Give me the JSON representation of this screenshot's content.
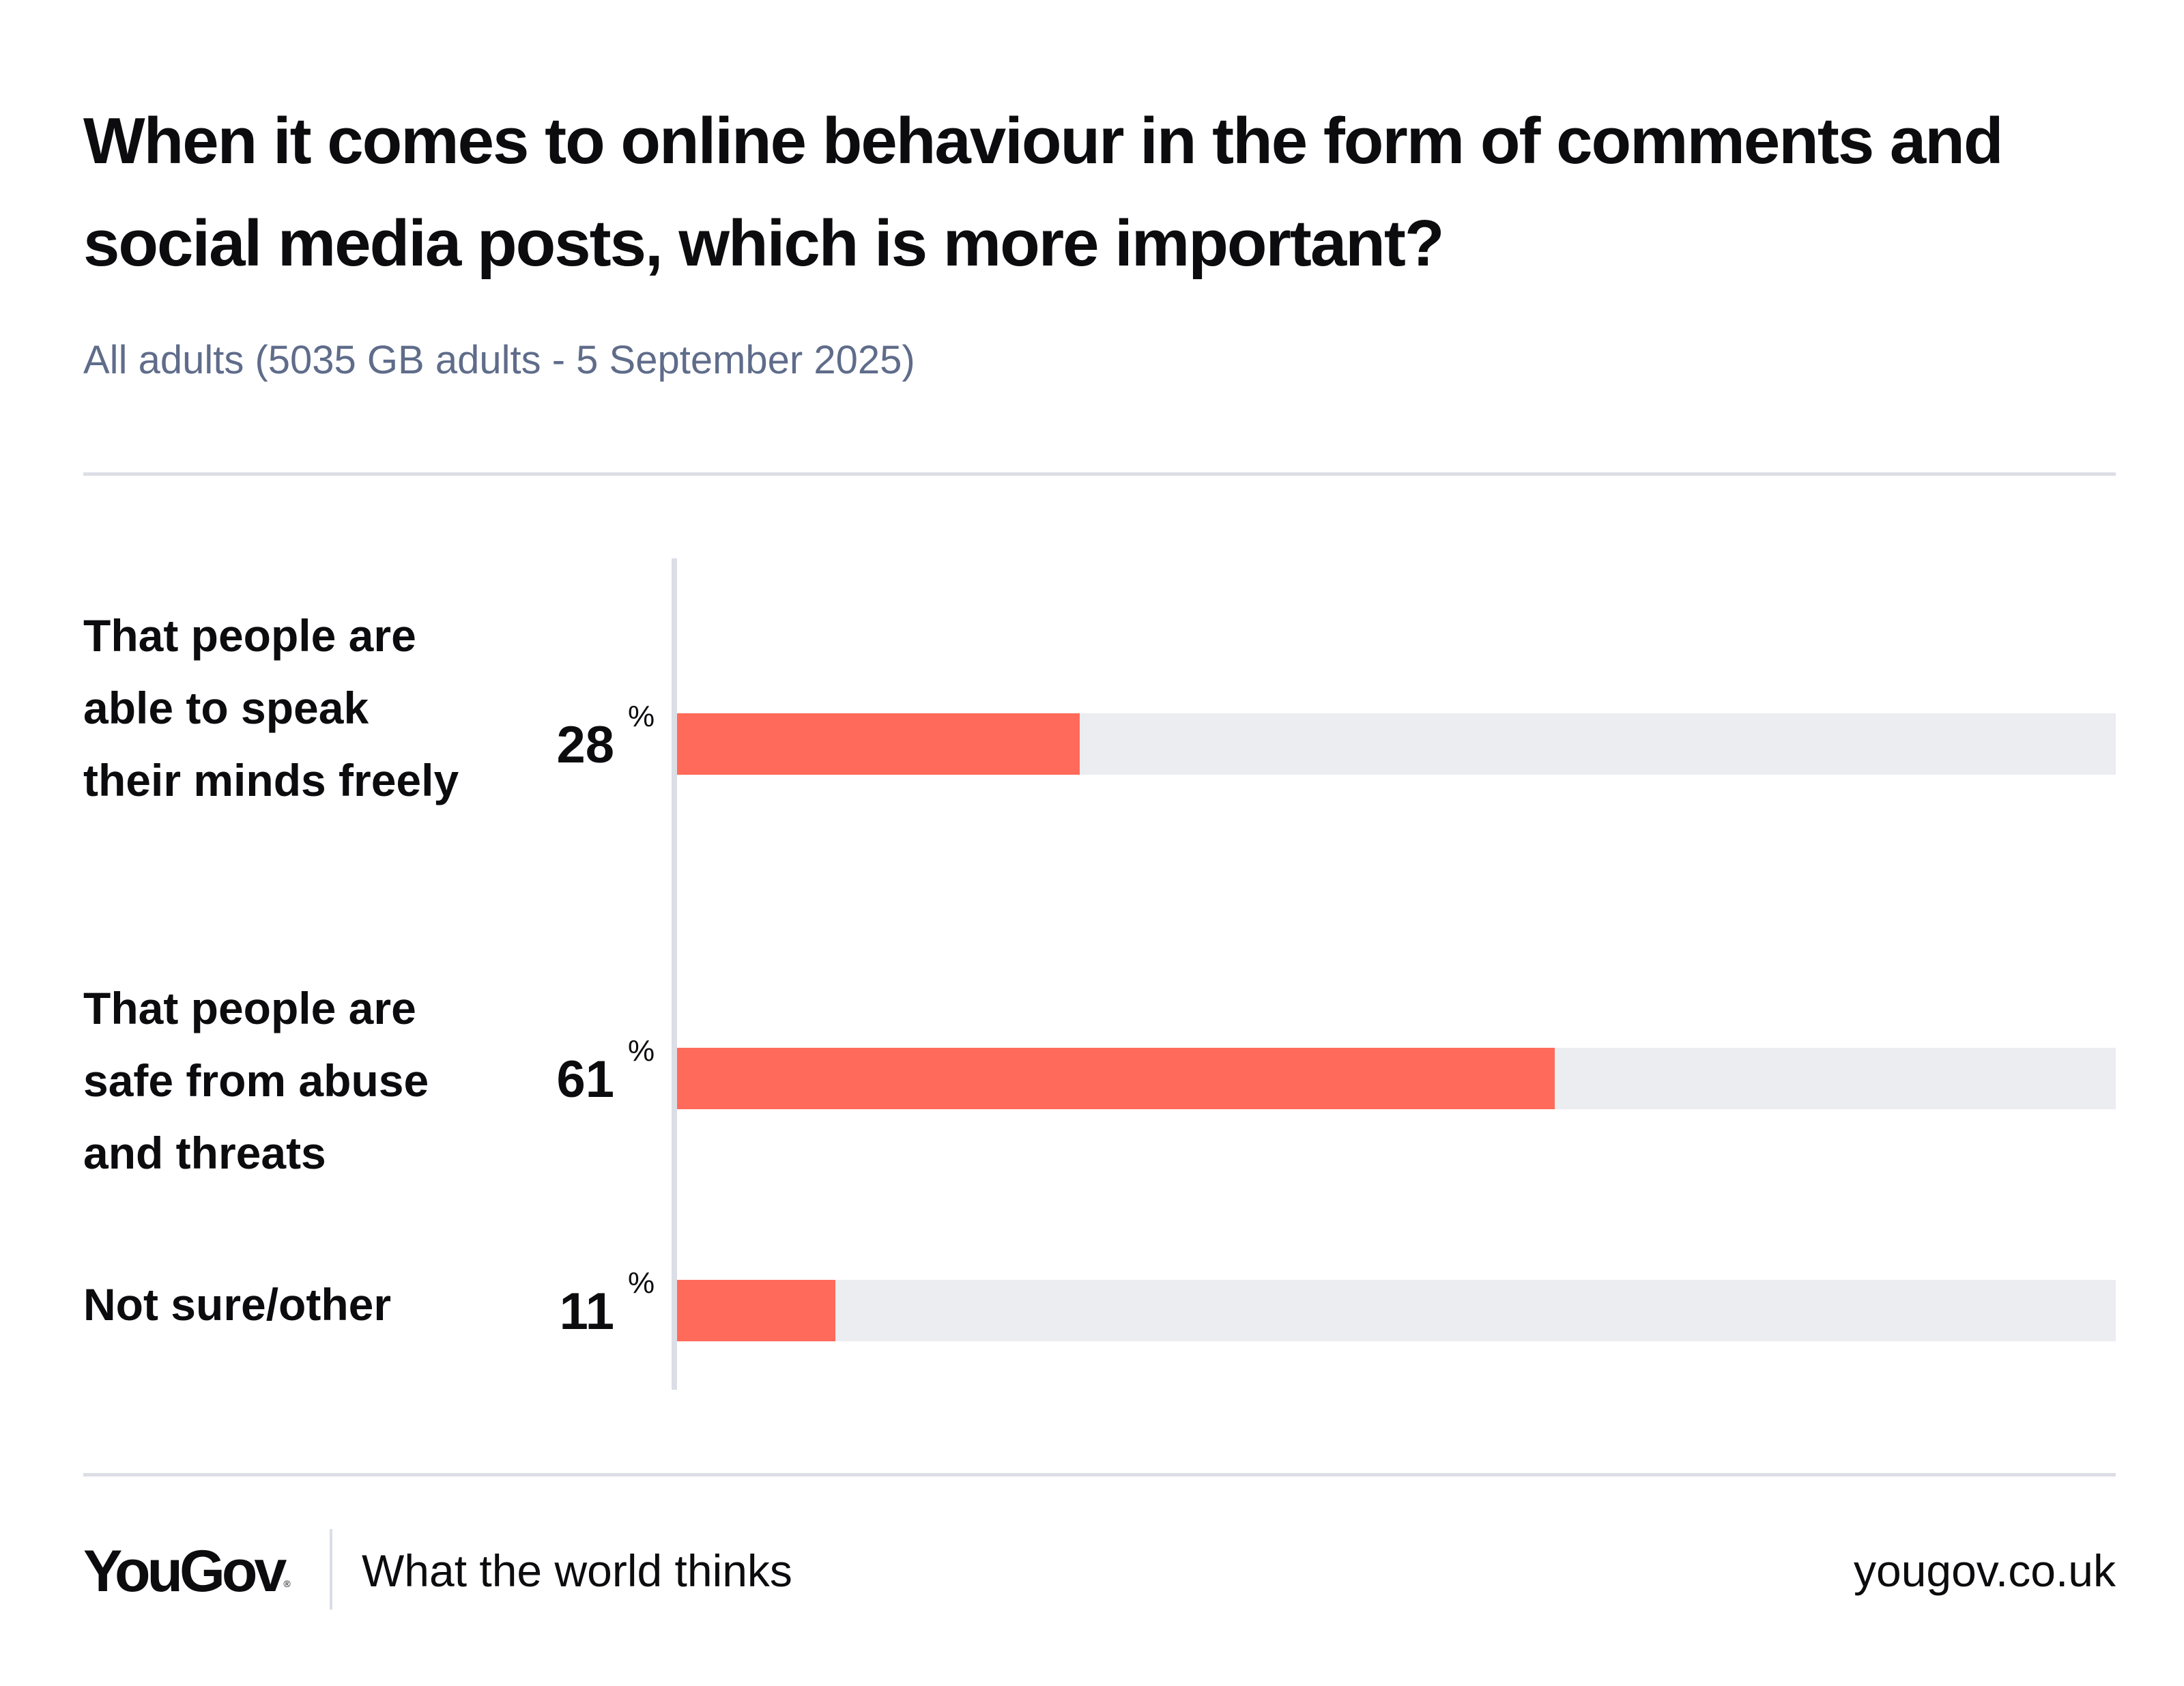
{
  "header": {
    "title": "When it comes to online behaviour in the form of comments and social media posts, which is more important?",
    "subtitle": "All adults (5035 GB adults - 5 September 2025)"
  },
  "chart_data": {
    "type": "bar",
    "orientation": "horizontal",
    "categories": [
      "That people are able to speak their minds freely",
      "That people are safe from abuse and threats",
      "Not sure/other"
    ],
    "values": [
      28,
      61,
      11
    ],
    "value_labels": [
      "28",
      "61",
      "11"
    ],
    "unit": "%",
    "xlim": [
      0,
      100
    ],
    "grid": false,
    "colors": {
      "bar": "#ff6a5a",
      "track": "#ecedf1",
      "axis": "#dcdee6"
    }
  },
  "footer": {
    "brand": "YouGov",
    "brand_mark": "®",
    "tagline": "What the world thinks",
    "url": "yougov.co.uk"
  }
}
